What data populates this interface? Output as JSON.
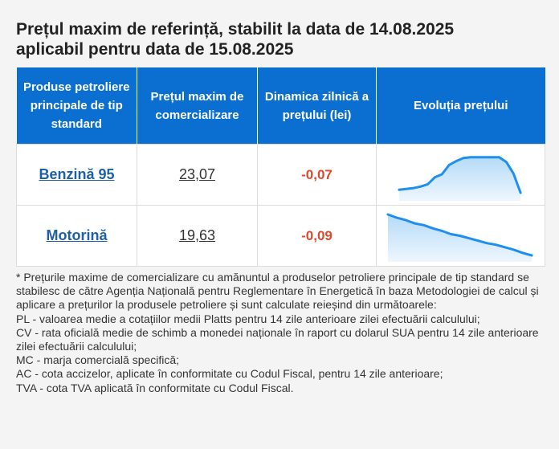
{
  "title_line1": "Prețul maxim de referință, stabilit la data de 14.08.2025",
  "title_line2": "aplicabil pentru data de 15.08.2025",
  "table": {
    "headers": [
      "Produse petroliere principale de tip standard",
      "Prețul maxim de comercializare",
      "Dinamica zilnică a prețului (lei)",
      "Evoluția prețului"
    ],
    "rows": [
      {
        "product": "Benzină 95",
        "price": "23,07",
        "change": "-0,07"
      },
      {
        "product": "Motorină",
        "price": "19,63",
        "change": "-0,09"
      }
    ]
  },
  "colors": {
    "header_bg": "#0a6fd1",
    "link": "#1d5fa8",
    "negative": "#e2472b",
    "spark_line": "#1e8fef",
    "spark_fill": "#a8d4f7"
  },
  "chart_data": [
    {
      "type": "area",
      "series": [
        {
          "values": [
            0.08,
            0.1,
            0.12,
            0.16,
            0.22,
            0.4,
            0.48,
            0.72,
            0.82,
            0.9,
            0.92,
            0.92,
            0.92,
            0.92,
            0.92,
            0.8,
            0.5,
            0.0
          ]
        }
      ]
    },
    {
      "type": "area",
      "series": [
        {
          "values": [
            1.0,
            0.92,
            0.86,
            0.78,
            0.74,
            0.66,
            0.6,
            0.52,
            0.48,
            0.42,
            0.36,
            0.3,
            0.26,
            0.2,
            0.14,
            0.06,
            0.0
          ]
        }
      ]
    }
  ],
  "notes": [
    "* Prețurile maxime de comercializare cu amănuntul a produselor petroliere principale de tip standard se stabilesc de către Agenția Națională pentru Reglementare în Energetică în baza Metodologiei de calcul și aplicare a prețurilor la produsele petroliere și sunt calculate reieșind din următoarele:",
    "PL - valoarea medie a cotațiilor medii Platts pentru 14 zile anterioare zilei efectuării calculului;",
    "CV - rata oficială medie de schimb a monedei naționale în raport cu dolarul SUA pentru 14 zile anterioare zilei efectuării calculului;",
    "MC - marja comercială specifică;",
    "AC - cota accizelor, aplicate în conformitate cu Codul Fiscal, pentru 14 zile anterioare;",
    "TVA - cota TVA aplicată în conformitate cu Codul Fiscal."
  ]
}
